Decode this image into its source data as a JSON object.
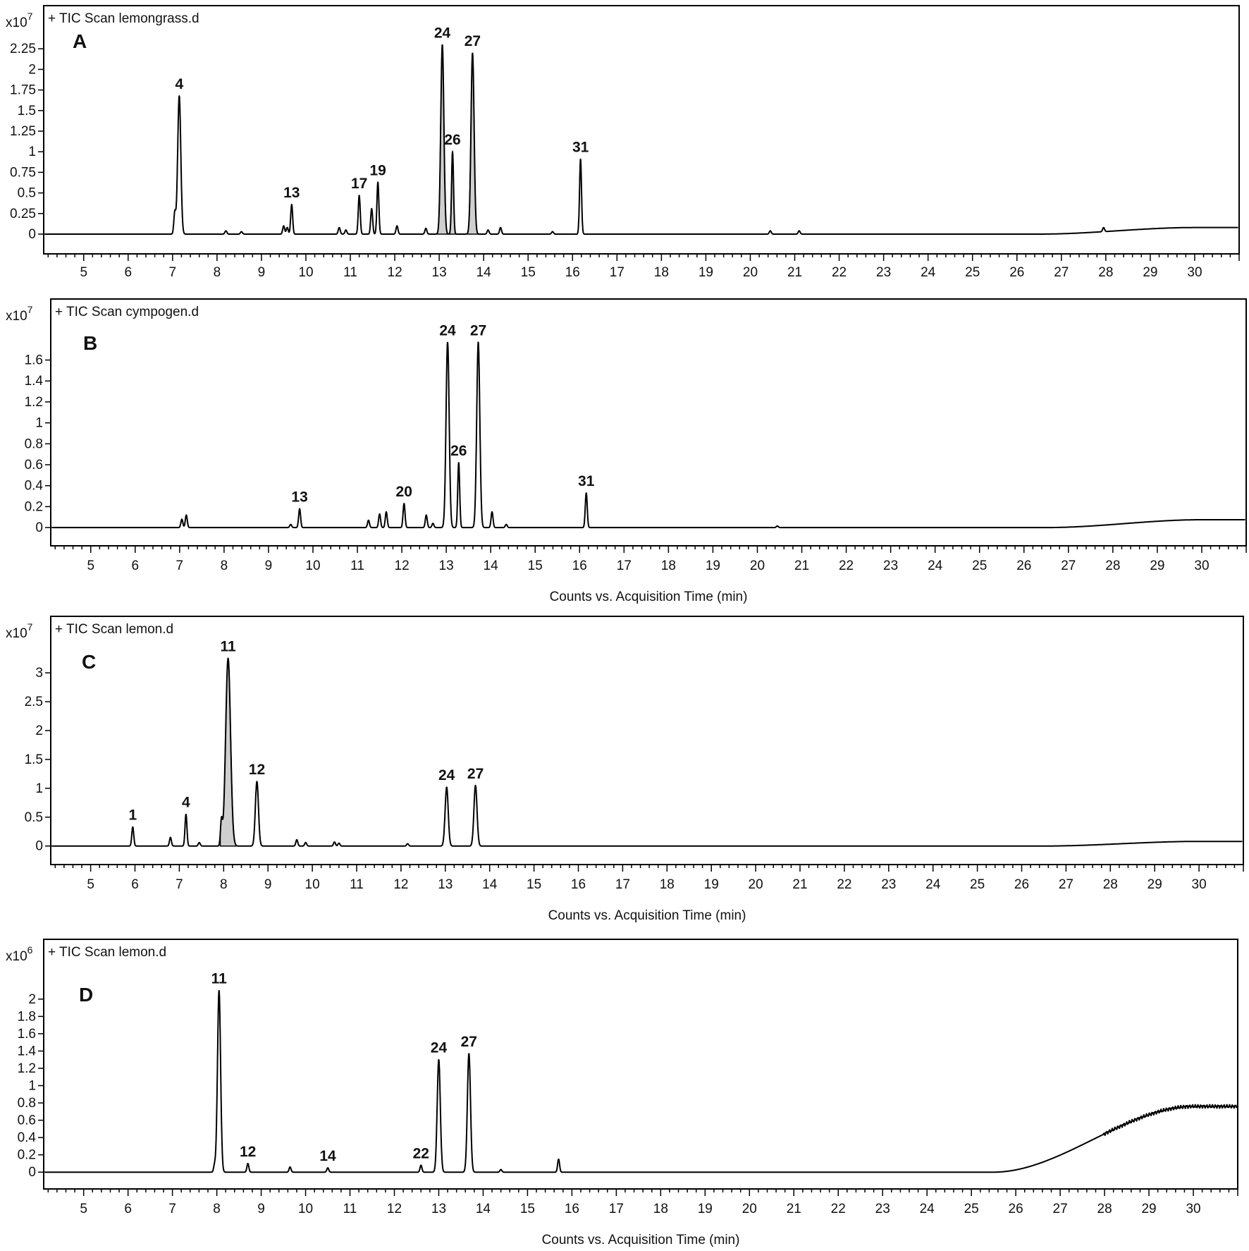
{
  "chart_data": [
    {
      "type": "line",
      "panel": "A",
      "title": "+ TIC Scan lemongrass.d",
      "y_scale_label": "x10",
      "y_exponent": "7",
      "xlabel": "",
      "xlim": [
        4.1,
        31.0
      ],
      "ylim": [
        -0.12,
        2.5
      ],
      "x_ticks": [
        5,
        6,
        7,
        8,
        9,
        10,
        11,
        12,
        13,
        14,
        15,
        16,
        17,
        18,
        19,
        20,
        21,
        22,
        23,
        24,
        25,
        26,
        27,
        28,
        29,
        30
      ],
      "y_ticks": [
        {
          "v": 0,
          "t": "0"
        },
        {
          "v": 0.25,
          "t": "0.25"
        },
        {
          "v": 0.5,
          "t": "0.5"
        },
        {
          "v": 0.75,
          "t": "0.75"
        },
        {
          "v": 1,
          "t": "1"
        },
        {
          "v": 1.25,
          "t": "1.25"
        },
        {
          "v": 1.5,
          "t": "1.5"
        },
        {
          "v": 1.75,
          "t": "1.75"
        },
        {
          "v": 2,
          "t": "2"
        },
        {
          "v": 2.25,
          "t": "2.25"
        }
      ],
      "baseline_drift": {
        "start": 26.5,
        "end": 30.0,
        "level": 0.08
      },
      "peaks": [
        {
          "rt": 7.05,
          "h": 0.26
        },
        {
          "rt": 7.15,
          "h": 1.68,
          "label": "4"
        },
        {
          "rt": 8.2,
          "h": 0.04
        },
        {
          "rt": 8.55,
          "h": 0.03
        },
        {
          "rt": 9.5,
          "h": 0.1
        },
        {
          "rt": 9.58,
          "h": 0.08
        },
        {
          "rt": 9.68,
          "h": 0.36,
          "label": "13"
        },
        {
          "rt": 10.75,
          "h": 0.08
        },
        {
          "rt": 10.9,
          "h": 0.05
        },
        {
          "rt": 11.2,
          "h": 0.47,
          "label": "17"
        },
        {
          "rt": 11.48,
          "h": 0.31
        },
        {
          "rt": 11.62,
          "h": 0.63,
          "label": "19"
        },
        {
          "rt": 12.05,
          "h": 0.1
        },
        {
          "rt": 12.7,
          "h": 0.07
        },
        {
          "rt": 13.07,
          "h": 2.3,
          "label": "24",
          "filled": true
        },
        {
          "rt": 13.3,
          "h": 1.0,
          "label": "26",
          "filled": true
        },
        {
          "rt": 13.75,
          "h": 2.2,
          "label": "27",
          "filled": true
        },
        {
          "rt": 14.1,
          "h": 0.05
        },
        {
          "rt": 14.38,
          "h": 0.08
        },
        {
          "rt": 15.55,
          "h": 0.03
        },
        {
          "rt": 16.18,
          "h": 0.91,
          "label": "31"
        },
        {
          "rt": 20.45,
          "h": 0.04
        },
        {
          "rt": 21.1,
          "h": 0.04
        },
        {
          "rt": 27.95,
          "h": 0.05
        }
      ]
    },
    {
      "type": "line",
      "panel": "B",
      "title": "+ TIC Scan cympogen.d",
      "y_scale_label": "x10",
      "y_exponent": "7",
      "xlabel": "Counts vs. Acquisition Time (min)",
      "xlim": [
        4.1,
        31.0
      ],
      "ylim": [
        -0.08,
        1.9
      ],
      "x_ticks": [
        5,
        6,
        7,
        8,
        9,
        10,
        11,
        12,
        13,
        14,
        15,
        16,
        17,
        18,
        19,
        20,
        21,
        22,
        23,
        24,
        25,
        26,
        27,
        28,
        29,
        30
      ],
      "y_ticks": [
        {
          "v": 0,
          "t": "0"
        },
        {
          "v": 0.2,
          "t": "0.2"
        },
        {
          "v": 0.4,
          "t": "0.4"
        },
        {
          "v": 0.6,
          "t": "0.6"
        },
        {
          "v": 0.8,
          "t": "0.8"
        },
        {
          "v": 1,
          "t": "1"
        },
        {
          "v": 1.2,
          "t": "1.2"
        },
        {
          "v": 1.4,
          "t": "1.4"
        },
        {
          "v": 1.6,
          "t": "1.6"
        }
      ],
      "baseline_drift": {
        "start": 26.5,
        "end": 30.0,
        "level": 0.075
      },
      "peaks": [
        {
          "rt": 7.05,
          "h": 0.08
        },
        {
          "rt": 7.15,
          "h": 0.12
        },
        {
          "rt": 9.5,
          "h": 0.03
        },
        {
          "rt": 9.7,
          "h": 0.18,
          "label": "13"
        },
        {
          "rt": 11.25,
          "h": 0.07
        },
        {
          "rt": 11.5,
          "h": 0.13
        },
        {
          "rt": 11.65,
          "h": 0.15
        },
        {
          "rt": 12.05,
          "h": 0.23,
          "label": "20"
        },
        {
          "rt": 12.55,
          "h": 0.12
        },
        {
          "rt": 12.7,
          "h": 0.04
        },
        {
          "rt": 13.03,
          "h": 1.77,
          "label": "24"
        },
        {
          "rt": 13.28,
          "h": 0.62,
          "label": "26"
        },
        {
          "rt": 13.72,
          "h": 1.77,
          "label": "27"
        },
        {
          "rt": 14.03,
          "h": 0.15
        },
        {
          "rt": 14.35,
          "h": 0.03
        },
        {
          "rt": 16.15,
          "h": 0.33,
          "label": "31"
        },
        {
          "rt": 20.45,
          "h": 0.015
        }
      ]
    },
    {
      "type": "line",
      "panel": "C",
      "title": "+ TIC Scan lemon.d",
      "y_scale_label": "x10",
      "y_exponent": "7",
      "xlabel": "Counts vs. Acquisition Time (min)",
      "xlim": [
        4.1,
        31.0
      ],
      "ylim": [
        -0.15,
        3.6
      ],
      "x_ticks": [
        5,
        6,
        7,
        8,
        9,
        10,
        11,
        12,
        13,
        14,
        15,
        16,
        17,
        18,
        19,
        20,
        21,
        22,
        23,
        24,
        25,
        26,
        27,
        28,
        29,
        30
      ],
      "y_ticks": [
        {
          "v": 0,
          "t": "0"
        },
        {
          "v": 0.5,
          "t": "0.5"
        },
        {
          "v": 1,
          "t": "1"
        },
        {
          "v": 1.5,
          "t": "1.5"
        },
        {
          "v": 2,
          "t": "2"
        },
        {
          "v": 2.5,
          "t": "2.5"
        },
        {
          "v": 3,
          "t": "3"
        }
      ],
      "baseline_drift": {
        "start": 26.5,
        "end": 30.0,
        "level": 0.08
      },
      "peaks": [
        {
          "rt": 5.95,
          "h": 0.33,
          "label": "1"
        },
        {
          "rt": 6.8,
          "h": 0.15
        },
        {
          "rt": 7.15,
          "h": 0.55,
          "label": "4"
        },
        {
          "rt": 7.45,
          "h": 0.06
        },
        {
          "rt": 7.95,
          "h": 0.42
        },
        {
          "rt": 8.1,
          "h": 3.25,
          "label": "11",
          "filled": true,
          "wide": true
        },
        {
          "rt": 8.75,
          "h": 1.12,
          "label": "12"
        },
        {
          "rt": 9.65,
          "h": 0.11
        },
        {
          "rt": 9.85,
          "h": 0.06
        },
        {
          "rt": 10.5,
          "h": 0.07
        },
        {
          "rt": 10.6,
          "h": 0.05
        },
        {
          "rt": 12.15,
          "h": 0.04
        },
        {
          "rt": 13.03,
          "h": 1.02,
          "label": "24"
        },
        {
          "rt": 13.68,
          "h": 1.05,
          "label": "27"
        }
      ]
    },
    {
      "type": "line",
      "panel": "D",
      "title": "+ TIC Scan lemon.d",
      "y_scale_label": "x10",
      "y_exponent": "6",
      "xlabel": "Counts vs. Acquisition Time (min)",
      "xlim": [
        4.1,
        31.0
      ],
      "ylim": [
        -0.08,
        2.3
      ],
      "x_ticks": [
        5,
        6,
        7,
        8,
        9,
        10,
        11,
        12,
        13,
        14,
        15,
        16,
        17,
        18,
        19,
        20,
        21,
        22,
        23,
        24,
        25,
        26,
        27,
        28,
        29,
        30
      ],
      "y_ticks": [
        {
          "v": 0,
          "t": "0"
        },
        {
          "v": 0.2,
          "t": "0.2"
        },
        {
          "v": 0.4,
          "t": "0.4"
        },
        {
          "v": 0.6,
          "t": "0.6"
        },
        {
          "v": 0.8,
          "t": "0.8"
        },
        {
          "v": 1,
          "t": "1"
        },
        {
          "v": 1.2,
          "t": "1.2"
        },
        {
          "v": 1.4,
          "t": "1.4"
        },
        {
          "v": 1.6,
          "t": "1.6"
        },
        {
          "v": 1.8,
          "t": "1.8"
        },
        {
          "v": 2,
          "t": "2"
        }
      ],
      "baseline_drift": {
        "start": 25.5,
        "end": 30.0,
        "level": 0.76,
        "noise": true
      },
      "peaks": [
        {
          "rt": 7.95,
          "h": 0.08
        },
        {
          "rt": 8.05,
          "h": 2.1,
          "label": "11"
        },
        {
          "rt": 8.7,
          "h": 0.1,
          "label": "12"
        },
        {
          "rt": 9.65,
          "h": 0.06
        },
        {
          "rt": 10.5,
          "h": 0.05,
          "label": "14"
        },
        {
          "rt": 12.6,
          "h": 0.08,
          "label": "22"
        },
        {
          "rt": 13.0,
          "h": 1.3,
          "label": "24"
        },
        {
          "rt": 13.68,
          "h": 1.37,
          "label": "27"
        },
        {
          "rt": 14.4,
          "h": 0.03
        },
        {
          "rt": 15.7,
          "h": 0.15
        }
      ]
    }
  ]
}
